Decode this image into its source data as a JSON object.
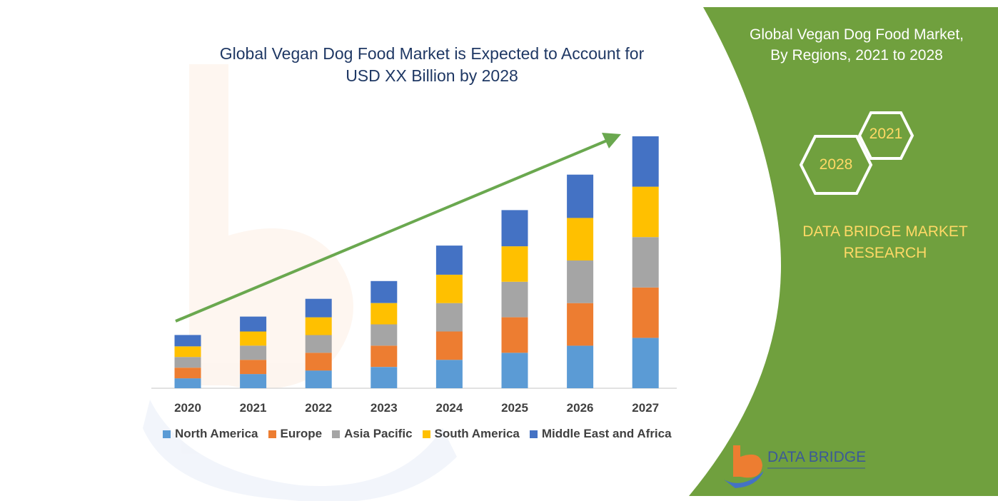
{
  "chart_data": {
    "type": "bar",
    "stacked": true,
    "title_lines": [
      "Global Vegan Dog Food Market is Expected to Account for",
      "USD XX Billion by 2028"
    ],
    "categories": [
      "2020",
      "2021",
      "2022",
      "2023",
      "2024",
      "2025",
      "2026",
      "2027"
    ],
    "series": [
      {
        "name": "North America",
        "color": "#5b9bd5",
        "values": [
          14,
          20,
          25,
          30,
          40,
          50,
          60,
          71
        ]
      },
      {
        "name": "Europe",
        "color": "#ed7d31",
        "values": [
          15,
          20,
          25,
          30,
          40,
          50,
          60,
          71
        ]
      },
      {
        "name": "Asia Pacific",
        "color": "#a5a5a5",
        "values": [
          15,
          20,
          25,
          30,
          40,
          50,
          60,
          71
        ]
      },
      {
        "name": "South America",
        "color": "#ffc000",
        "values": [
          15,
          20,
          25,
          30,
          40,
          50,
          60,
          71
        ]
      },
      {
        "name": "Middle East and Africa",
        "color": "#4472c4",
        "values": [
          16,
          21,
          26,
          31,
          41,
          51,
          61,
          71
        ]
      }
    ],
    "legend": "bottom",
    "ylim": [
      0,
      360
    ],
    "grid": false,
    "trend_arrow": true
  },
  "side_panel": {
    "title_lines": [
      "Global Vegan Dog Food Market,",
      "By Regions, 2021 to 2028"
    ],
    "hex_year_a": "2021",
    "hex_year_b": "2028",
    "brand_lines": [
      "DATA BRIDGE MARKET",
      "RESEARCH"
    ]
  },
  "logo": {
    "text": "DATA BRIDGE"
  },
  "colors": {
    "panel_green": "#70a03e",
    "accent_yellow": "#ffd966",
    "arrow_green": "#6aa84f",
    "title_navy": "#1f3864"
  }
}
